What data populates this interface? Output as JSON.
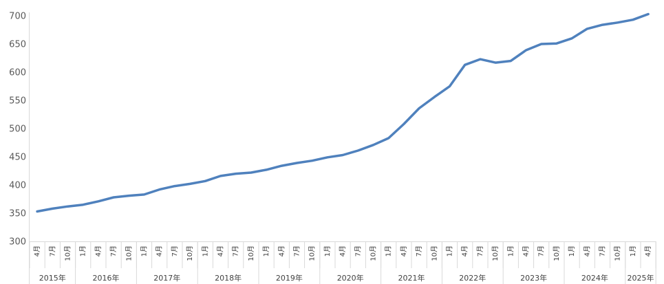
{
  "chart_data": {
    "type": "line",
    "color": "#4F81BD",
    "grid": false,
    "ylim": [
      300,
      700
    ],
    "yticks": [
      300,
      350,
      400,
      450,
      500,
      550,
      600,
      650,
      700
    ],
    "xlabel": "",
    "ylabel": "",
    "title": "",
    "quarters": [
      "4月",
      "7月",
      "10月",
      "1月",
      "4月",
      "7月",
      "10月",
      "1月",
      "4月",
      "7月",
      "10月",
      "1月",
      "4月",
      "7月",
      "10月",
      "1月",
      "4月",
      "7月",
      "10月",
      "1月",
      "4月",
      "7月",
      "10月",
      "1月",
      "4月",
      "7月",
      "10月",
      "1月",
      "4月",
      "7月",
      "10月",
      "1月",
      "4月",
      "7月",
      "10月",
      "1月",
      "4月",
      "7月",
      "10月",
      "1月",
      "4月"
    ],
    "years": [
      {
        "label": "2015年",
        "count": 3
      },
      {
        "label": "2016年",
        "count": 4
      },
      {
        "label": "2017年",
        "count": 4
      },
      {
        "label": "2018年",
        "count": 4
      },
      {
        "label": "2019年",
        "count": 4
      },
      {
        "label": "2020年",
        "count": 4
      },
      {
        "label": "2021年",
        "count": 4
      },
      {
        "label": "2022年",
        "count": 4
      },
      {
        "label": "2023年",
        "count": 4
      },
      {
        "label": "2024年",
        "count": 4
      },
      {
        "label": "2025年",
        "count": 2
      }
    ],
    "series": [
      {
        "values": [
          353,
          358,
          362,
          365,
          371,
          378,
          381,
          383,
          392,
          398,
          402,
          407,
          416,
          420,
          422,
          427,
          434,
          439,
          443,
          449,
          453,
          461,
          471,
          483,
          508,
          536,
          556,
          575,
          613,
          623,
          617,
          620,
          639,
          650,
          651,
          660,
          677,
          684,
          688,
          693,
          703
        ]
      }
    ]
  }
}
